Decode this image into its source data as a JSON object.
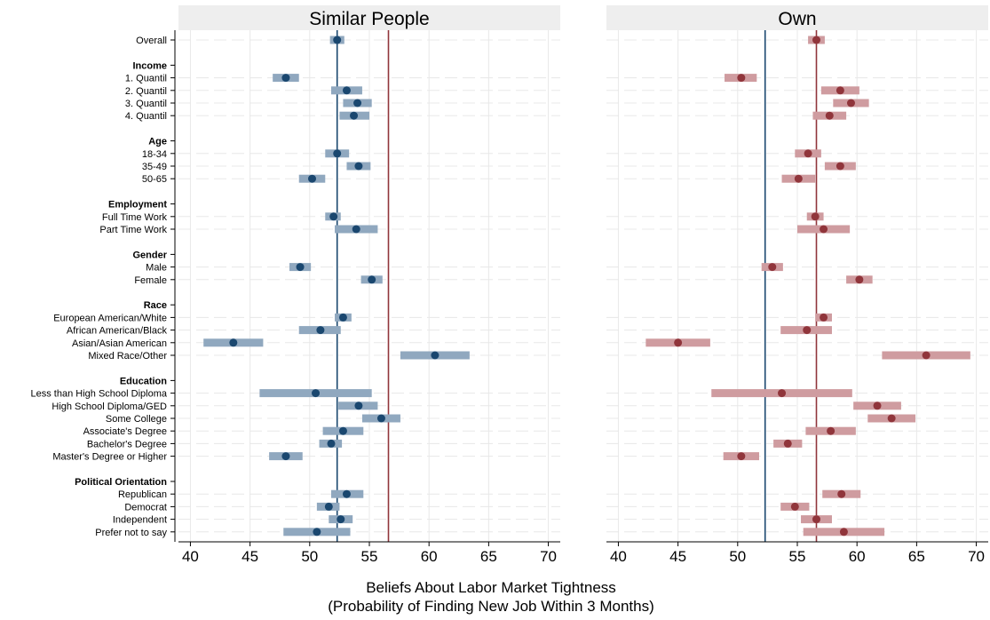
{
  "chart_data": {
    "type": "scatter",
    "style": "dot-with-confidence-interval",
    "xlabel_line1": "Beliefs About Labor Market Tightness",
    "xlabel_line2": "(Probability of Finding New Job Within 3 Months)",
    "xlim": [
      39,
      71
    ],
    "xticks": [
      40,
      45,
      50,
      55,
      60,
      65,
      70
    ],
    "grid": true,
    "reference_lines": {
      "blue": 52.3,
      "red": 56.6
    },
    "colors": {
      "blue_dot": "#1a476f",
      "blue_bar": "#90a8bf",
      "blue_line": "#1a476f",
      "red_dot": "#90353b",
      "red_bar": "#cf9ca0",
      "red_line": "#90353b",
      "strip_bg": "#eeeeee",
      "grid": "#e8e8e8"
    },
    "rows": [
      {
        "label": "Overall",
        "header": false
      },
      {
        "label": "Income",
        "header": true
      },
      {
        "label": "1. Quantil",
        "header": false
      },
      {
        "label": "2. Quantil",
        "header": false
      },
      {
        "label": "3. Quantil",
        "header": false
      },
      {
        "label": "4. Quantil",
        "header": false
      },
      {
        "label": "Age",
        "header": true
      },
      {
        "label": "18-34",
        "header": false
      },
      {
        "label": "35-49",
        "header": false
      },
      {
        "label": "50-65",
        "header": false
      },
      {
        "label": "Employment",
        "header": true
      },
      {
        "label": "Full Time Work",
        "header": false
      },
      {
        "label": "Part Time Work",
        "header": false
      },
      {
        "label": "Gender",
        "header": true
      },
      {
        "label": "Male",
        "header": false
      },
      {
        "label": "Female",
        "header": false
      },
      {
        "label": "Race",
        "header": true
      },
      {
        "label": "European American/White",
        "header": false
      },
      {
        "label": "African American/Black",
        "header": false
      },
      {
        "label": "Asian/Asian American",
        "header": false
      },
      {
        "label": "Mixed Race/Other",
        "header": false
      },
      {
        "label": "Education",
        "header": true
      },
      {
        "label": "Less than High School Diploma",
        "header": false
      },
      {
        "label": "High School Diploma/GED",
        "header": false
      },
      {
        "label": "Some College",
        "header": false
      },
      {
        "label": "Associate's Degree",
        "header": false
      },
      {
        "label": "Bachelor's Degree",
        "header": false
      },
      {
        "label": "Master's Degree or Higher",
        "header": false
      },
      {
        "label": "Political Orientation",
        "header": true
      },
      {
        "label": "Republican",
        "header": false
      },
      {
        "label": "Democrat",
        "header": false
      },
      {
        "label": "Independent",
        "header": false
      },
      {
        "label": "Prefer not to say",
        "header": false
      }
    ],
    "panels": [
      {
        "title": "Similar People",
        "color": "blue",
        "points": [
          {
            "row": "Overall",
            "est": 52.3,
            "lo": 51.7,
            "hi": 52.9
          },
          {
            "row": "1. Quantil",
            "est": 48.0,
            "lo": 46.9,
            "hi": 49.1
          },
          {
            "row": "2. Quantil",
            "est": 53.1,
            "lo": 51.8,
            "hi": 54.4
          },
          {
            "row": "3. Quantil",
            "est": 54.0,
            "lo": 52.8,
            "hi": 55.2
          },
          {
            "row": "4. Quantil",
            "est": 53.7,
            "lo": 52.5,
            "hi": 55.0
          },
          {
            "row": "18-34",
            "est": 52.3,
            "lo": 51.3,
            "hi": 53.3
          },
          {
            "row": "35-49",
            "est": 54.1,
            "lo": 53.1,
            "hi": 55.1
          },
          {
            "row": "50-65",
            "est": 50.2,
            "lo": 49.1,
            "hi": 51.3
          },
          {
            "row": "Full Time Work",
            "est": 52.0,
            "lo": 51.3,
            "hi": 52.6
          },
          {
            "row": "Part Time Work",
            "est": 53.9,
            "lo": 52.1,
            "hi": 55.7
          },
          {
            "row": "Male",
            "est": 49.2,
            "lo": 48.3,
            "hi": 50.1
          },
          {
            "row": "Female",
            "est": 55.2,
            "lo": 54.3,
            "hi": 56.1
          },
          {
            "row": "European American/White",
            "est": 52.8,
            "lo": 52.1,
            "hi": 53.5
          },
          {
            "row": "African American/Black",
            "est": 50.9,
            "lo": 49.1,
            "hi": 52.6
          },
          {
            "row": "Asian/Asian American",
            "est": 43.6,
            "lo": 41.1,
            "hi": 46.1
          },
          {
            "row": "Mixed Race/Other",
            "est": 60.5,
            "lo": 57.6,
            "hi": 63.4
          },
          {
            "row": "Less than High School Diploma",
            "est": 50.5,
            "lo": 45.8,
            "hi": 55.2
          },
          {
            "row": "High School Diploma/GED",
            "est": 54.1,
            "lo": 52.4,
            "hi": 55.7
          },
          {
            "row": "Some College",
            "est": 56.0,
            "lo": 54.4,
            "hi": 57.6
          },
          {
            "row": "Associate's Degree",
            "est": 52.8,
            "lo": 51.1,
            "hi": 54.5
          },
          {
            "row": "Bachelor's Degree",
            "est": 51.8,
            "lo": 50.8,
            "hi": 52.7
          },
          {
            "row": "Master's Degree or Higher",
            "est": 48.0,
            "lo": 46.6,
            "hi": 49.4
          },
          {
            "row": "Republican",
            "est": 53.1,
            "lo": 51.8,
            "hi": 54.5
          },
          {
            "row": "Democrat",
            "est": 51.6,
            "lo": 50.6,
            "hi": 52.5
          },
          {
            "row": "Independent",
            "est": 52.6,
            "lo": 51.6,
            "hi": 53.6
          },
          {
            "row": "Prefer not to say",
            "est": 50.6,
            "lo": 47.8,
            "hi": 53.4
          }
        ]
      },
      {
        "title": "Own",
        "color": "red",
        "points": [
          {
            "row": "Overall",
            "est": 56.6,
            "lo": 55.9,
            "hi": 57.3
          },
          {
            "row": "1. Quantil",
            "est": 50.3,
            "lo": 48.9,
            "hi": 51.6
          },
          {
            "row": "2. Quantil",
            "est": 58.6,
            "lo": 57.0,
            "hi": 60.2
          },
          {
            "row": "3. Quantil",
            "est": 59.5,
            "lo": 58.0,
            "hi": 61.0
          },
          {
            "row": "4. Quantil",
            "est": 57.7,
            "lo": 56.3,
            "hi": 59.1
          },
          {
            "row": "18-34",
            "est": 55.9,
            "lo": 54.8,
            "hi": 57.0
          },
          {
            "row": "35-49",
            "est": 58.6,
            "lo": 57.3,
            "hi": 59.9
          },
          {
            "row": "50-65",
            "est": 55.1,
            "lo": 53.7,
            "hi": 56.5
          },
          {
            "row": "Full Time Work",
            "est": 56.5,
            "lo": 55.8,
            "hi": 57.2
          },
          {
            "row": "Part Time Work",
            "est": 57.2,
            "lo": 55.0,
            "hi": 59.4
          },
          {
            "row": "Male",
            "est": 52.9,
            "lo": 52.0,
            "hi": 53.8
          },
          {
            "row": "Female",
            "est": 60.2,
            "lo": 59.1,
            "hi": 61.3
          },
          {
            "row": "European American/White",
            "est": 57.2,
            "lo": 56.5,
            "hi": 57.9
          },
          {
            "row": "African American/Black",
            "est": 55.8,
            "lo": 53.6,
            "hi": 57.9
          },
          {
            "row": "Asian/Asian American",
            "est": 45.0,
            "lo": 42.3,
            "hi": 47.7
          },
          {
            "row": "Mixed Race/Other",
            "est": 65.8,
            "lo": 62.1,
            "hi": 69.5
          },
          {
            "row": "Less than High School Diploma",
            "est": 53.7,
            "lo": 47.8,
            "hi": 59.6
          },
          {
            "row": "High School Diploma/GED",
            "est": 61.7,
            "lo": 59.7,
            "hi": 63.7
          },
          {
            "row": "Some College",
            "est": 62.9,
            "lo": 60.9,
            "hi": 64.9
          },
          {
            "row": "Associate's Degree",
            "est": 57.8,
            "lo": 55.7,
            "hi": 59.9
          },
          {
            "row": "Bachelor's Degree",
            "est": 54.2,
            "lo": 53.0,
            "hi": 55.4
          },
          {
            "row": "Master's Degree or Higher",
            "est": 50.3,
            "lo": 48.8,
            "hi": 51.8
          },
          {
            "row": "Republican",
            "est": 58.7,
            "lo": 57.1,
            "hi": 60.3
          },
          {
            "row": "Democrat",
            "est": 54.8,
            "lo": 53.6,
            "hi": 56.0
          },
          {
            "row": "Independent",
            "est": 56.6,
            "lo": 55.3,
            "hi": 57.9
          },
          {
            "row": "Prefer not to say",
            "est": 58.9,
            "lo": 55.5,
            "hi": 62.3
          }
        ]
      }
    ]
  }
}
